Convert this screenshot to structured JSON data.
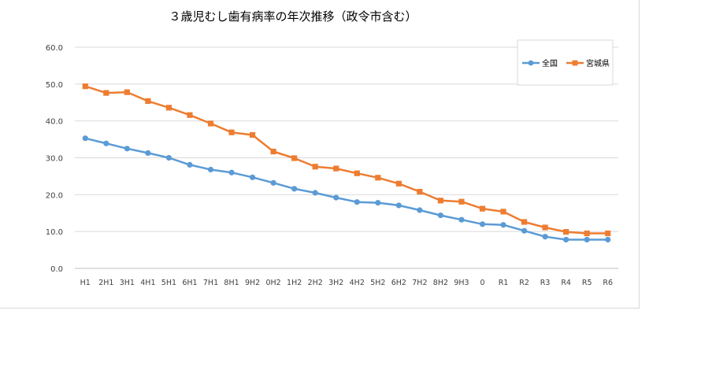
{
  "chart_data": {
    "type": "line",
    "title": "３歳児むし歯有病率の年次推移（政令市含む）",
    "xlabel": "",
    "ylabel": "",
    "ylim": [
      0,
      60
    ],
    "yticks": [
      "0.0",
      "10.0",
      "20.0",
      "30.0",
      "40.0",
      "50.0",
      "60.0"
    ],
    "ytick_values": [
      0,
      10,
      20,
      30,
      40,
      50,
      60
    ],
    "grid": true,
    "legend_position": "top-right",
    "categories": [
      "H1",
      "2H1",
      "3H1",
      "4H1",
      "5H1",
      "6H1",
      "7H1",
      "8H1",
      "9H2",
      "0H2",
      "1H2",
      "2H2",
      "3H2",
      "4H2",
      "5H2",
      "6H2",
      "7H2",
      "8H2",
      "9H3",
      "0",
      "R1",
      "R2",
      "R3",
      "R4",
      "R5",
      "R6"
    ],
    "series": [
      {
        "name": "全国",
        "color": "#5b9bd5",
        "marker": "circle",
        "values": [
          35.3,
          33.9,
          32.5,
          31.3,
          30.0,
          28.1,
          26.8,
          26.0,
          24.7,
          23.2,
          21.6,
          20.5,
          19.2,
          18.0,
          17.8,
          17.1,
          15.8,
          14.4,
          13.2,
          12.0,
          11.8,
          10.2,
          8.6,
          7.8,
          7.8,
          7.8
        ]
      },
      {
        "name": "宮城県",
        "color": "#ed7d31",
        "marker": "square",
        "values": [
          49.4,
          47.6,
          47.8,
          45.4,
          43.6,
          41.6,
          39.3,
          36.9,
          36.2,
          31.7,
          29.9,
          27.6,
          27.1,
          25.8,
          24.6,
          23.0,
          20.8,
          18.4,
          18.1,
          16.2,
          15.4,
          12.6,
          11.1,
          9.9,
          9.5,
          9.5
        ]
      }
    ]
  }
}
